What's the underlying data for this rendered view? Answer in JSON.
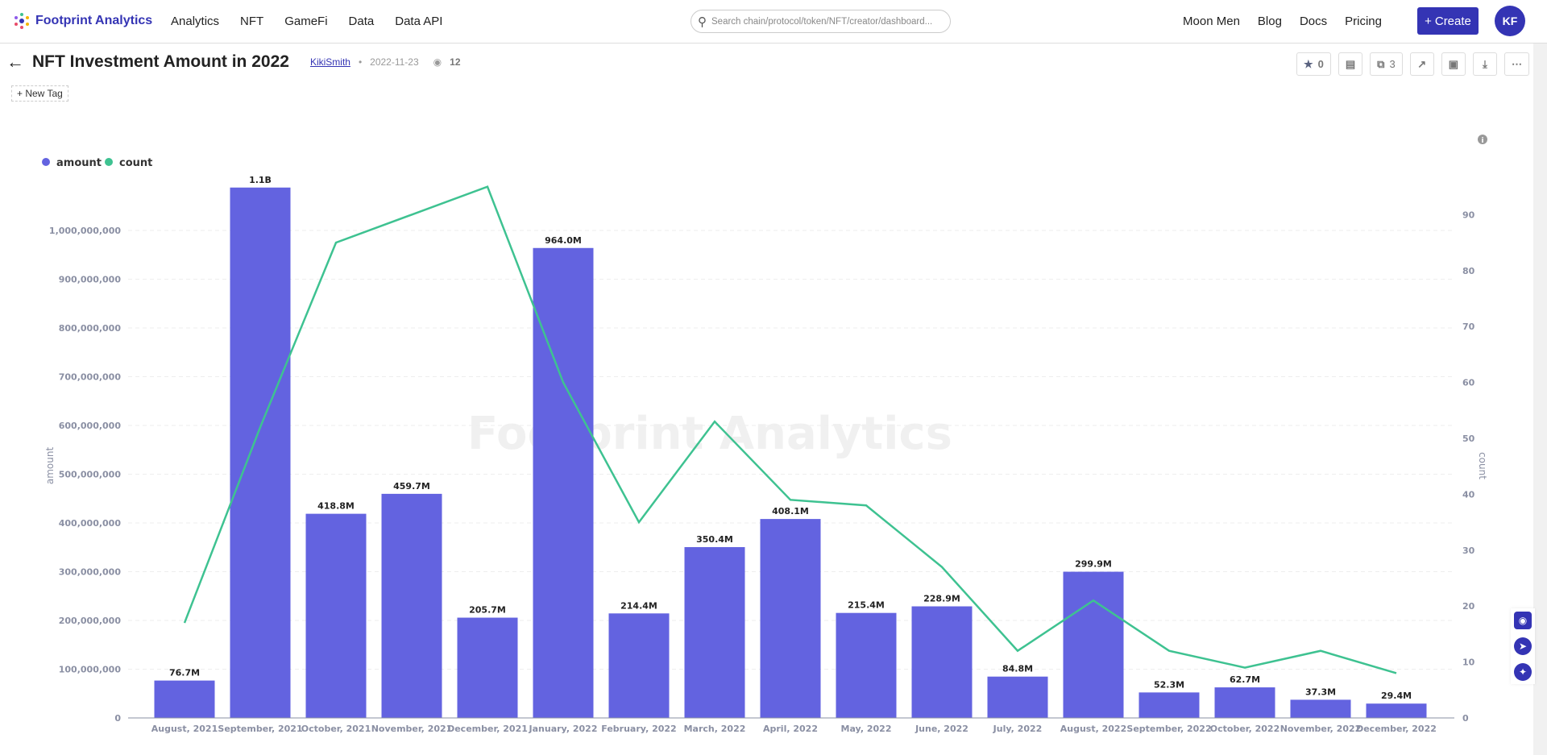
{
  "header": {
    "logo": "Footprint Analytics",
    "nav": [
      "Analytics",
      "NFT",
      "GameFi",
      "Data",
      "Data API"
    ],
    "search_placeholder": "Search chain/protocol/token/NFT/creator/dashboard...",
    "right_nav": [
      "Moon Men",
      "Blog",
      "Docs",
      "Pricing"
    ],
    "create_label": "Create",
    "avatar": "KF"
  },
  "page": {
    "title": "NFT Investment Amount in 2022",
    "author": "KikiSmith",
    "date": "2022-11-23",
    "views": "12",
    "new_tag": "New Tag",
    "star_count": "0",
    "copy_count": "3"
  },
  "watermark": "Footprint Analytics",
  "colors": {
    "amount": "#6363E0",
    "count": "#3EC291",
    "brand": "#3434B4"
  },
  "chart_data": {
    "type": "bar+line",
    "legend": [
      "amount",
      "count"
    ],
    "legend_position": "top-left",
    "xlabel": "",
    "ylabel_left": "amount",
    "ylabel_right": "count",
    "ylim_left": [
      0,
      1100000000
    ],
    "ylim_right": [
      0,
      95
    ],
    "yticks_left": [
      "0",
      "100,000,000",
      "200,000,000",
      "300,000,000",
      "400,000,000",
      "500,000,000",
      "600,000,000",
      "700,000,000",
      "800,000,000",
      "900,000,000",
      "1,000,000,000"
    ],
    "yticks_right": [
      "0",
      "10",
      "20",
      "30",
      "40",
      "50",
      "60",
      "70",
      "80",
      "90"
    ],
    "categories": [
      "August, 2021",
      "September, 2021",
      "October, 2021",
      "November, 2021",
      "December, 2021",
      "January, 2022",
      "February, 2022",
      "March, 2022",
      "April, 2022",
      "May, 2022",
      "June, 2022",
      "July, 2022",
      "August, 2022",
      "September, 2022",
      "October, 2022",
      "November, 2022",
      "December, 2022"
    ],
    "series": [
      {
        "name": "amount",
        "type": "bar",
        "values": [
          76700000,
          1088000000,
          418800000,
          459700000,
          205700000,
          964000000,
          214400000,
          350400000,
          408100000,
          215400000,
          228900000,
          84800000,
          299900000,
          52300000,
          62700000,
          37300000,
          29400000
        ],
        "labels": [
          "76.7M",
          "1.1B",
          "418.8M",
          "459.7M",
          "205.7M",
          "964.0M",
          "214.4M",
          "350.4M",
          "408.1M",
          "215.4M",
          "228.9M",
          "84.8M",
          "299.9M",
          "52.3M",
          "62.7M",
          "37.3M",
          "29.4M"
        ]
      },
      {
        "name": "count",
        "type": "line",
        "values": [
          17,
          52,
          85,
          90,
          95,
          60,
          35,
          53,
          39,
          38,
          27,
          12,
          21,
          12,
          9,
          12,
          8
        ]
      }
    ]
  }
}
